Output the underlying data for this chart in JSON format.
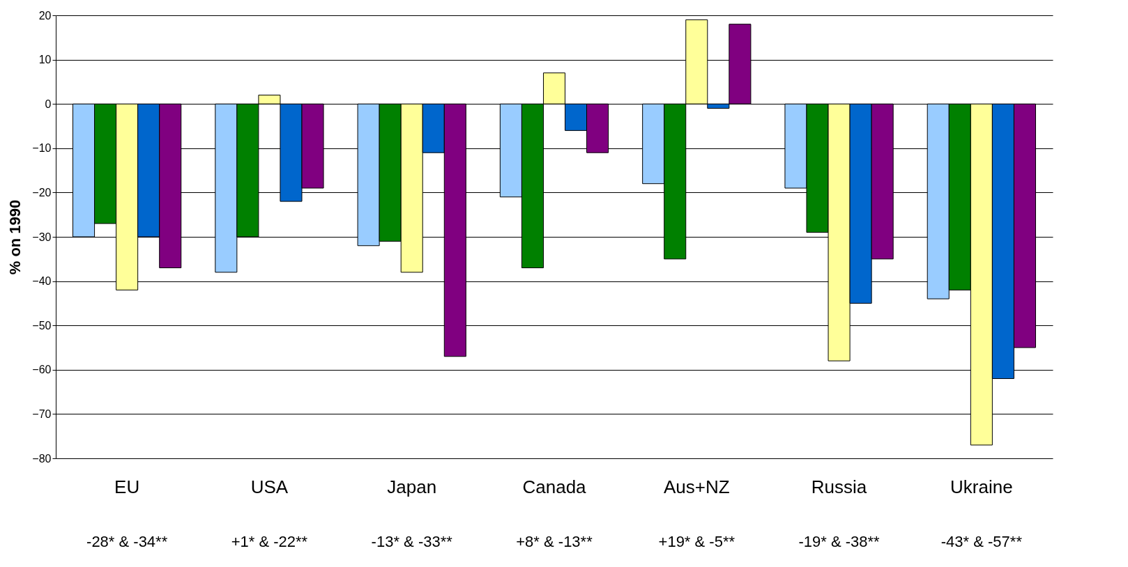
{
  "chart_data": {
    "type": "bar",
    "ylabel": "% on 1990",
    "categories": [
      "EU",
      "USA",
      "Japan",
      "Canada",
      "Aus+NZ",
      "Russia",
      "Ukraine"
    ],
    "series": [
      {
        "color": "#99ccff",
        "values": [
          -30,
          -38,
          -32,
          -21,
          -18,
          -19,
          -44
        ]
      },
      {
        "color": "#008000",
        "values": [
          -27,
          -30,
          -31,
          -37,
          -35,
          -29,
          -42
        ]
      },
      {
        "color": "#ffff99",
        "values": [
          -42,
          2,
          -38,
          7,
          19,
          -58,
          -77
        ]
      },
      {
        "color": "#0066cc",
        "values": [
          -30,
          -22,
          -11,
          -6,
          -1,
          -45,
          -62
        ]
      },
      {
        "color": "#800080",
        "values": [
          -37,
          -19,
          -57,
          -11,
          18,
          -35,
          -55
        ]
      }
    ],
    "ylim": [
      -80,
      20
    ],
    "yticks": [
      -80,
      -70,
      -60,
      -50,
      -40,
      -30,
      -20,
      -10,
      0,
      10,
      20
    ],
    "grid": "y",
    "annotations": [
      "-28* & -34**",
      "+1* & -22**",
      "-13* &  -33**",
      "+8* & -13**",
      "+19* & -5**",
      "-19* & -38**",
      "-43* & -57**"
    ]
  }
}
